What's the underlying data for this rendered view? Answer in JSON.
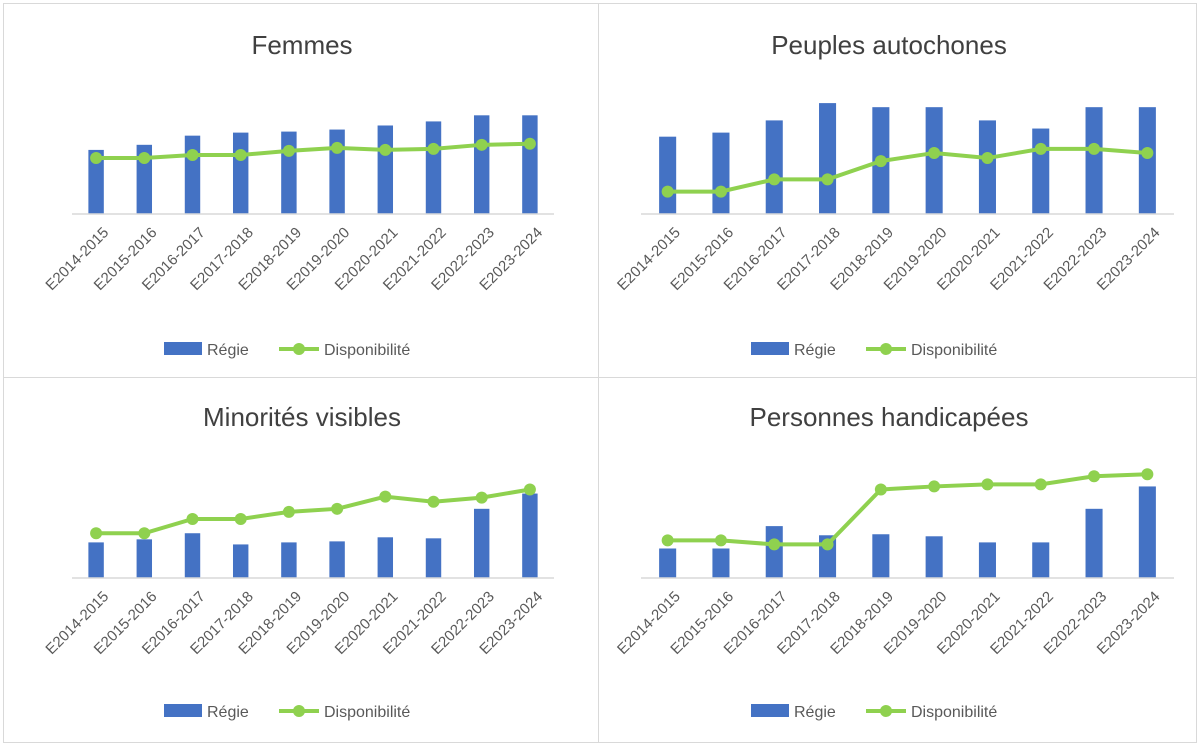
{
  "chart_data": [
    {
      "type": "bar+line",
      "title": "Femmes",
      "categories": [
        "E2014-2015",
        "E2015-2016",
        "E2016-2017",
        "E2017-2018",
        "E2018-2019",
        "E2019-2020",
        "E2020-2021",
        "E2021-2022",
        "E2022-2023",
        "E2023-2024"
      ],
      "series": [
        {
          "name": "Régie",
          "type": "bar",
          "color": "#4472c4",
          "values": [
            63,
            68,
            77,
            80,
            81,
            83,
            87,
            91,
            97,
            97
          ]
        },
        {
          "name": "Disponibilité",
          "type": "line",
          "color": "#8fd14f",
          "values": [
            55,
            55,
            58,
            58,
            62,
            65,
            63,
            64,
            68,
            69
          ]
        }
      ],
      "ylim": [
        0,
        115
      ],
      "y_axis_shown": false,
      "grid": false,
      "legend": "bottom"
    },
    {
      "type": "bar+line",
      "title": "Peuples autochones",
      "categories": [
        "E2014-2015",
        "E2015-2016",
        "E2016-2017",
        "E2017-2018",
        "E2018-2019",
        "E2019-2020",
        "E2020-2021",
        "E2021-2022",
        "E2022-2023",
        "E2023-2024"
      ],
      "series": [
        {
          "name": "Régie",
          "type": "bar",
          "color": "#4472c4",
          "values": [
            76,
            80,
            92,
            109,
            105,
            105,
            92,
            84,
            105,
            105
          ]
        },
        {
          "name": "Disponibilité",
          "type": "line",
          "color": "#8fd14f",
          "values": [
            22,
            22,
            34,
            34,
            52,
            60,
            55,
            64,
            64,
            60
          ]
        }
      ],
      "ylim": [
        0,
        115
      ],
      "y_axis_shown": false,
      "grid": false,
      "legend": "bottom"
    },
    {
      "type": "bar+line",
      "title": "Minorités visibles",
      "categories": [
        "E2014-2015",
        "E2015-2016",
        "E2016-2017",
        "E2017-2018",
        "E2018-2019",
        "E2019-2020",
        "E2020-2021",
        "E2021-2022",
        "E2022-2023",
        "E2023-2024"
      ],
      "series": [
        {
          "name": "Régie",
          "type": "bar",
          "color": "#4472c4",
          "values": [
            35,
            38,
            44,
            33,
            35,
            36,
            40,
            39,
            68,
            83
          ]
        },
        {
          "name": "Disponibilité",
          "type": "line",
          "color": "#8fd14f",
          "values": [
            44,
            44,
            58,
            58,
            65,
            68,
            80,
            75,
            79,
            87
          ]
        }
      ],
      "ylim": [
        0,
        115
      ],
      "y_axis_shown": false,
      "grid": false,
      "legend": "bottom"
    },
    {
      "type": "bar+line",
      "title": "Personnes handicapées",
      "categories": [
        "E2014-2015",
        "E2015-2016",
        "E2016-2017",
        "E2017-2018",
        "E2018-2019",
        "E2019-2020",
        "E2020-2021",
        "E2021-2022",
        "E2022-2023",
        "E2023-2024"
      ],
      "series": [
        {
          "name": "Régie",
          "type": "bar",
          "color": "#4472c4",
          "values": [
            29,
            29,
            51,
            42,
            43,
            41,
            35,
            35,
            68,
            90
          ]
        },
        {
          "name": "Disponibilité",
          "type": "line",
          "color": "#8fd14f",
          "values": [
            37,
            37,
            33,
            33,
            87,
            90,
            92,
            92,
            100,
            102
          ]
        }
      ],
      "ylim": [
        0,
        115
      ],
      "y_axis_shown": false,
      "grid": false,
      "legend": "bottom"
    }
  ]
}
